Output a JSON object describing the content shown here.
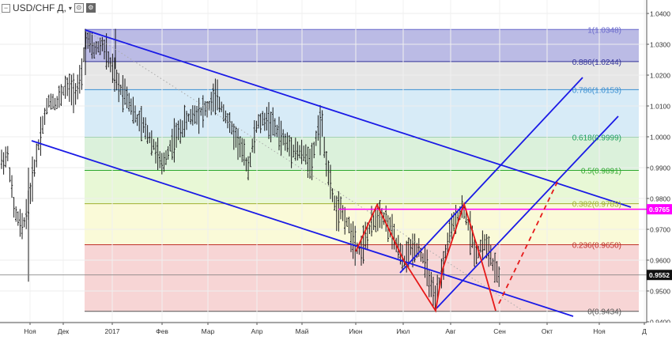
{
  "header": {
    "symbol": "USD/CHF",
    "interval": "Д,",
    "caret": "▾",
    "collapse": "−",
    "btn1": "⊙",
    "btn2": "⚙"
  },
  "colors": {
    "channel": "#1a1ae6",
    "zigzag": "#e61919",
    "magenta": "#ff00ff",
    "bars": "#1a1a1a",
    "price_badge_bg": "#111111"
  },
  "chart_data": {
    "type": "candlestick_ohlc_bars",
    "y_axis": {
      "ticks": [
        "1.0400",
        "1.0300",
        "1.0200",
        "1.0100",
        "1.0000",
        "0.9900",
        "0.9800",
        "0.9700",
        "0.9600",
        "0.9500",
        "0.9400"
      ],
      "ylim": [
        0.9385,
        1.042
      ]
    },
    "x_axis": {
      "labels": [
        "Ноя",
        "Дек",
        "2017",
        "Фев",
        "Мар",
        "Апр",
        "Май",
        "Июн",
        "Июл",
        "Авг",
        "Сен",
        "Окт",
        "Ноя",
        "Д"
      ]
    },
    "fibonacci": [
      {
        "label": "1(1.0348)",
        "value": 1.0348,
        "color": "#6a6acc",
        "fill": "#b4b4e2"
      },
      {
        "label": "0.886(1.0244)",
        "value": 1.0244,
        "color": "#333399",
        "fill": "#e3e3e3"
      },
      {
        "label": "0.786(1.0153)",
        "value": 1.0153,
        "color": "#3b8fd1",
        "fill": "#d3e9f6"
      },
      {
        "label": "0.618(0.9999)",
        "value": 0.9999,
        "color": "#1f9e5f",
        "fill": "#d7f0d7"
      },
      {
        "label": "0.5(0.9891)",
        "value": 0.9891,
        "color": "#2ea82e",
        "fill": "#e6f7d2"
      },
      {
        "label": "0.382(0.9783)",
        "value": 0.9783,
        "color": "#a0b030",
        "fill": "#f9f9d4"
      },
      {
        "label": "0.236(0.9650)",
        "value": 0.965,
        "color": "#c0302a",
        "fill": "#f6d0d0"
      },
      {
        "label": "0(0.9434)",
        "value": 0.9434,
        "color": "#555555",
        "fill": null
      }
    ],
    "horizontal_line": {
      "value": 0.9765,
      "label": "0.9765"
    },
    "current_price": {
      "value": 0.9552,
      "label": "0.9552"
    },
    "zigzag": [
      [
        0.62,
        0.9616
      ],
      [
        0.645,
        0.9772
      ],
      [
        0.675,
        0.9584
      ],
      [
        0.695,
        0.954
      ],
      [
        0.755,
        0.9434
      ],
      [
        0.795,
        0.9779
      ],
      [
        0.825,
        0.96
      ],
      [
        0.86,
        0.9434
      ]
    ],
    "zigzag_projection": [
      [
        0.86,
        0.9434
      ],
      [
        0.965,
        0.985
      ]
    ]
  }
}
